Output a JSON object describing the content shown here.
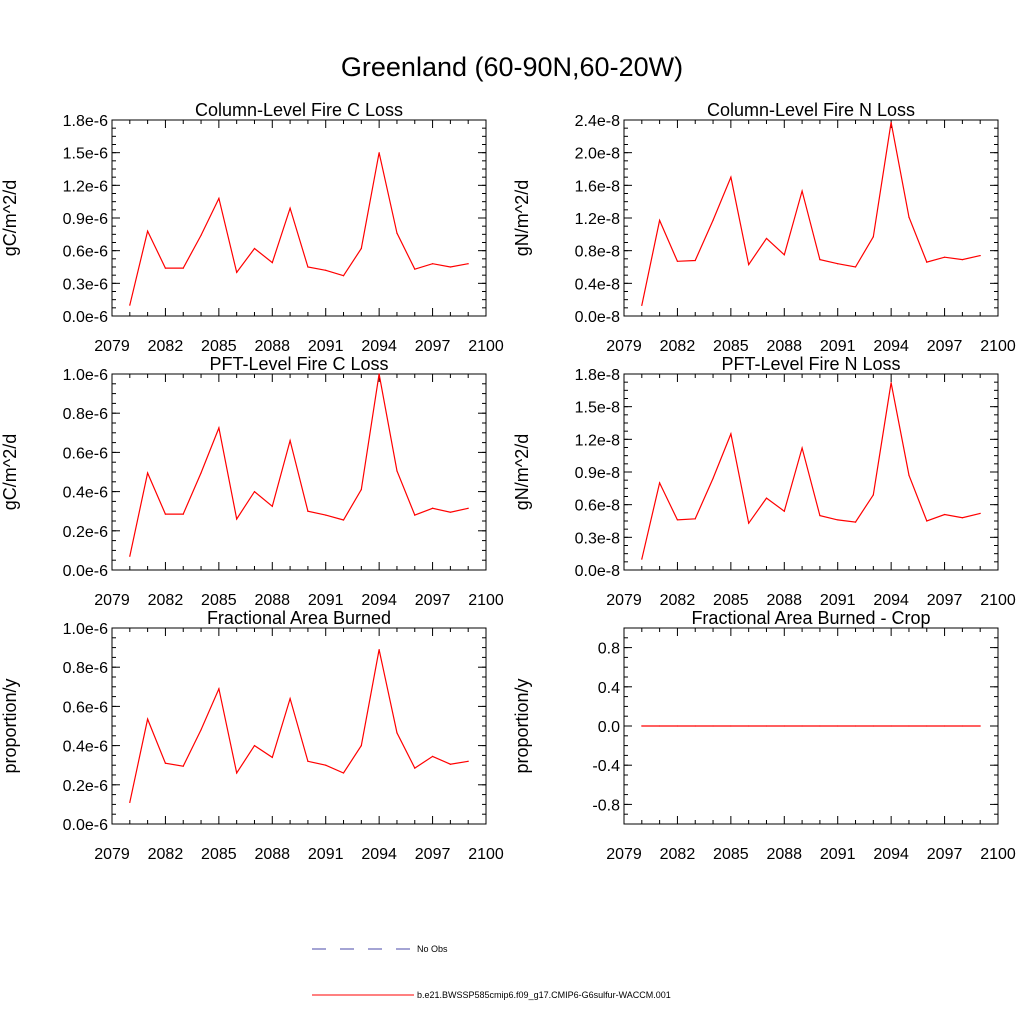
{
  "title": "Greenland (60-90N,60-20W)",
  "legend": {
    "obs_label": "No Obs",
    "obs_color": "#4a4aa8",
    "model_label": "b.e21.BWSSP585cmip6.f09_g17.CMIP6-G6sulfur-WACCM.001",
    "model_color": "#ff0000"
  },
  "chart_data": [
    {
      "type": "line",
      "title": "Column-Level Fire C Loss",
      "ylabel": "gC/m^2/d",
      "xlim": [
        2079,
        2100
      ],
      "xticks": [
        "2079",
        "2082",
        "2085",
        "2088",
        "2091",
        "2094",
        "2097",
        "2100"
      ],
      "ylim": [
        0,
        1.8e-06
      ],
      "yticks": [
        {
          "v": 0,
          "label": "0.0e-6"
        },
        {
          "v": 3e-07,
          "label": "0.3e-6"
        },
        {
          "v": 6e-07,
          "label": "0.6e-6"
        },
        {
          "v": 9e-07,
          "label": "0.9e-6"
        },
        {
          "v": 1.2e-06,
          "label": "1.2e-6"
        },
        {
          "v": 1.5e-06,
          "label": "1.5e-6"
        },
        {
          "v": 1.8e-06,
          "label": "1.8e-6"
        }
      ],
      "x": [
        2080,
        2081,
        2082,
        2083,
        2084,
        2085,
        2086,
        2087,
        2088,
        2089,
        2090,
        2091,
        2092,
        2093,
        2094,
        2095,
        2096,
        2097,
        2098,
        2099
      ],
      "values": [
        1e-07,
        7.8e-07,
        4.4e-07,
        4.4e-07,
        7.4e-07,
        1.08e-06,
        4e-07,
        6.2e-07,
        4.9e-07,
        9.9e-07,
        4.5e-07,
        4.2e-07,
        3.7e-07,
        6.2e-07,
        1.5e-06,
        7.6e-07,
        4.3e-07,
        4.8e-07,
        4.5e-07,
        4.8e-07
      ]
    },
    {
      "type": "line",
      "title": "Column-Level Fire N Loss",
      "ylabel": "gN/m^2/d",
      "xlim": [
        2079,
        2100
      ],
      "xticks": [
        "2079",
        "2082",
        "2085",
        "2088",
        "2091",
        "2094",
        "2097",
        "2100"
      ],
      "ylim": [
        0,
        2.4e-08
      ],
      "yticks": [
        {
          "v": 0,
          "label": "0.0e-8"
        },
        {
          "v": 4e-09,
          "label": "0.4e-8"
        },
        {
          "v": 8e-09,
          "label": "0.8e-8"
        },
        {
          "v": 1.2e-08,
          "label": "1.2e-8"
        },
        {
          "v": 1.6e-08,
          "label": "1.6e-8"
        },
        {
          "v": 2e-08,
          "label": "2.0e-8"
        },
        {
          "v": 2.4e-08,
          "label": "2.4e-8"
        }
      ],
      "x": [
        2080,
        2081,
        2082,
        2083,
        2084,
        2085,
        2086,
        2087,
        2088,
        2089,
        2090,
        2091,
        2092,
        2093,
        2094,
        2095,
        2096,
        2097,
        2098,
        2099
      ],
      "values": [
        1.3e-09,
        1.17e-08,
        6.7e-09,
        6.8e-09,
        1.17e-08,
        1.7e-08,
        6.3e-09,
        9.5e-09,
        7.5e-09,
        1.53e-08,
        6.9e-09,
        6.4e-09,
        6e-09,
        9.7e-09,
        2.37e-08,
        1.21e-08,
        6.6e-09,
        7.2e-09,
        6.9e-09,
        7.4e-09
      ]
    },
    {
      "type": "line",
      "title": "PFT-Level Fire C Loss",
      "ylabel": "gC/m^2/d",
      "xlim": [
        2079,
        2100
      ],
      "xticks": [
        "2079",
        "2082",
        "2085",
        "2088",
        "2091",
        "2094",
        "2097",
        "2100"
      ],
      "ylim": [
        0,
        1e-06
      ],
      "yticks": [
        {
          "v": 0,
          "label": "0.0e-6"
        },
        {
          "v": 2e-07,
          "label": "0.2e-6"
        },
        {
          "v": 4e-07,
          "label": "0.4e-6"
        },
        {
          "v": 6e-07,
          "label": "0.6e-6"
        },
        {
          "v": 8e-07,
          "label": "0.8e-6"
        },
        {
          "v": 1e-06,
          "label": "1.0e-6"
        }
      ],
      "x": [
        2080,
        2081,
        2082,
        2083,
        2084,
        2085,
        2086,
        2087,
        2088,
        2089,
        2090,
        2091,
        2092,
        2093,
        2094,
        2095,
        2096,
        2097,
        2098,
        2099
      ],
      "values": [
        7e-08,
        4.95e-07,
        2.85e-07,
        2.85e-07,
        4.95e-07,
        7.25e-07,
        2.6e-07,
        4e-07,
        3.25e-07,
        6.6e-07,
        3e-07,
        2.8e-07,
        2.55e-07,
        4.1e-07,
        1e-06,
        5.05e-07,
        2.8e-07,
        3.15e-07,
        2.95e-07,
        3.15e-07
      ]
    },
    {
      "type": "line",
      "title": "PFT-Level Fire N Loss",
      "ylabel": "gN/m^2/d",
      "xlim": [
        2079,
        2100
      ],
      "xticks": [
        "2079",
        "2082",
        "2085",
        "2088",
        "2091",
        "2094",
        "2097",
        "2100"
      ],
      "ylim": [
        0,
        1.8e-08
      ],
      "yticks": [
        {
          "v": 0,
          "label": "0.0e-8"
        },
        {
          "v": 3e-09,
          "label": "0.3e-8"
        },
        {
          "v": 6e-09,
          "label": "0.6e-8"
        },
        {
          "v": 9e-09,
          "label": "0.9e-8"
        },
        {
          "v": 1.2e-08,
          "label": "1.2e-8"
        },
        {
          "v": 1.5e-08,
          "label": "1.5e-8"
        },
        {
          "v": 1.8e-08,
          "label": "1.8e-8"
        }
      ],
      "x": [
        2080,
        2081,
        2082,
        2083,
        2084,
        2085,
        2086,
        2087,
        2088,
        2089,
        2090,
        2091,
        2092,
        2093,
        2094,
        2095,
        2096,
        2097,
        2098,
        2099
      ],
      "values": [
        1e-09,
        8e-09,
        4.6e-09,
        4.7e-09,
        8.4e-09,
        1.25e-08,
        4.3e-09,
        6.6e-09,
        5.4e-09,
        1.12e-08,
        5e-09,
        4.6e-09,
        4.4e-09,
        6.9e-09,
        1.72e-08,
        8.7e-09,
        4.5e-09,
        5.1e-09,
        4.8e-09,
        5.2e-09
      ]
    },
    {
      "type": "line",
      "title": "Fractional Area Burned",
      "ylabel": "proportion/y",
      "xlim": [
        2079,
        2100
      ],
      "xticks": [
        "2079",
        "2082",
        "2085",
        "2088",
        "2091",
        "2094",
        "2097",
        "2100"
      ],
      "ylim": [
        0,
        1e-06
      ],
      "yticks": [
        {
          "v": 0,
          "label": "0.0e-6"
        },
        {
          "v": 2e-07,
          "label": "0.2e-6"
        },
        {
          "v": 4e-07,
          "label": "0.4e-6"
        },
        {
          "v": 6e-07,
          "label": "0.6e-6"
        },
        {
          "v": 8e-07,
          "label": "0.8e-6"
        },
        {
          "v": 1e-06,
          "label": "1.0e-6"
        }
      ],
      "x": [
        2080,
        2081,
        2082,
        2083,
        2084,
        2085,
        2086,
        2087,
        2088,
        2089,
        2090,
        2091,
        2092,
        2093,
        2094,
        2095,
        2096,
        2097,
        2098,
        2099
      ],
      "values": [
        1.1e-07,
        5.35e-07,
        3.1e-07,
        2.95e-07,
        4.8e-07,
        6.9e-07,
        2.6e-07,
        4e-07,
        3.4e-07,
        6.4e-07,
        3.2e-07,
        3e-07,
        2.6e-07,
        4e-07,
        8.9e-07,
        4.65e-07,
        2.85e-07,
        3.45e-07,
        3.05e-07,
        3.2e-07
      ]
    },
    {
      "type": "line",
      "title": "Fractional Area Burned - Crop",
      "ylabel": "proportion/y",
      "xlim": [
        2079,
        2100
      ],
      "xticks": [
        "2079",
        "2082",
        "2085",
        "2088",
        "2091",
        "2094",
        "2097",
        "2100"
      ],
      "ylim": [
        -1.0,
        1.0
      ],
      "yticks": [
        {
          "v": -0.8,
          "label": "-0.8"
        },
        {
          "v": -0.4,
          "label": "-0.4"
        },
        {
          "v": 0,
          "label": "0.0"
        },
        {
          "v": 0.4,
          "label": "0.4"
        },
        {
          "v": 0.8,
          "label": "0.8"
        }
      ],
      "x": [
        2080,
        2081,
        2082,
        2083,
        2084,
        2085,
        2086,
        2087,
        2088,
        2089,
        2090,
        2091,
        2092,
        2093,
        2094,
        2095,
        2096,
        2097,
        2098,
        2099
      ],
      "values": [
        0,
        0,
        0,
        0,
        0,
        0,
        0,
        0,
        0,
        0,
        0,
        0,
        0,
        0,
        0,
        0,
        0,
        0,
        0,
        0
      ]
    }
  ]
}
